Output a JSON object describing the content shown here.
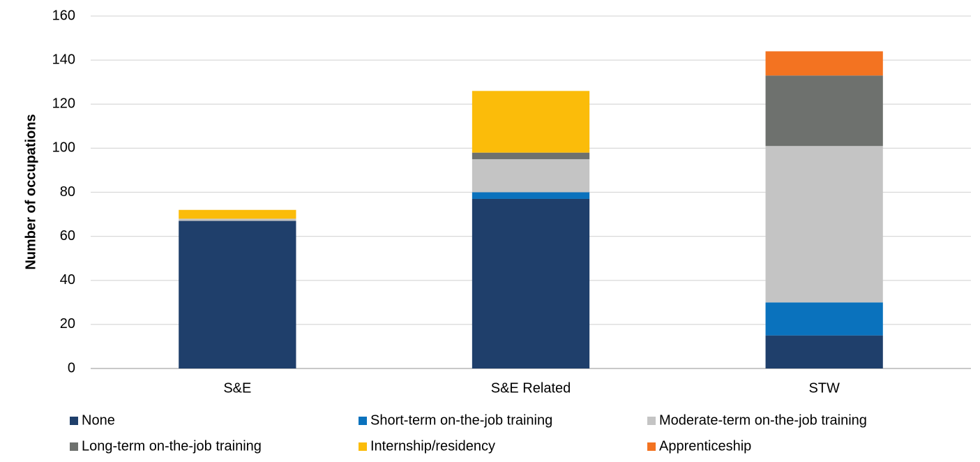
{
  "chart_data": {
    "type": "stacked_bar",
    "ylabel": "Number of occupations",
    "categories": [
      "S&E",
      "S&E Related",
      "STW"
    ],
    "series": [
      {
        "name": "None",
        "color": "#1f3f6b",
        "values": [
          67,
          77,
          15
        ]
      },
      {
        "name": "Short-term on-the-job training",
        "color": "#0a72bd",
        "values": [
          0,
          3,
          15
        ]
      },
      {
        "name": "Moderate-term on-the-job training",
        "color": "#c4c4c4",
        "values": [
          1,
          15,
          71
        ]
      },
      {
        "name": "Long-term on-the-job training",
        "color": "#6e716e",
        "values": [
          0,
          3,
          32
        ]
      },
      {
        "name": "Internship/residency",
        "color": "#fbbc0a",
        "values": [
          4,
          28,
          0
        ]
      },
      {
        "name": "Apprenticeship",
        "color": "#f37321",
        "values": [
          0,
          0,
          11
        ]
      }
    ],
    "ylim": [
      0,
      160
    ],
    "yticks": [
      0,
      20,
      40,
      60,
      80,
      100,
      120,
      140,
      160
    ],
    "grid": true,
    "legend": "bottom"
  }
}
